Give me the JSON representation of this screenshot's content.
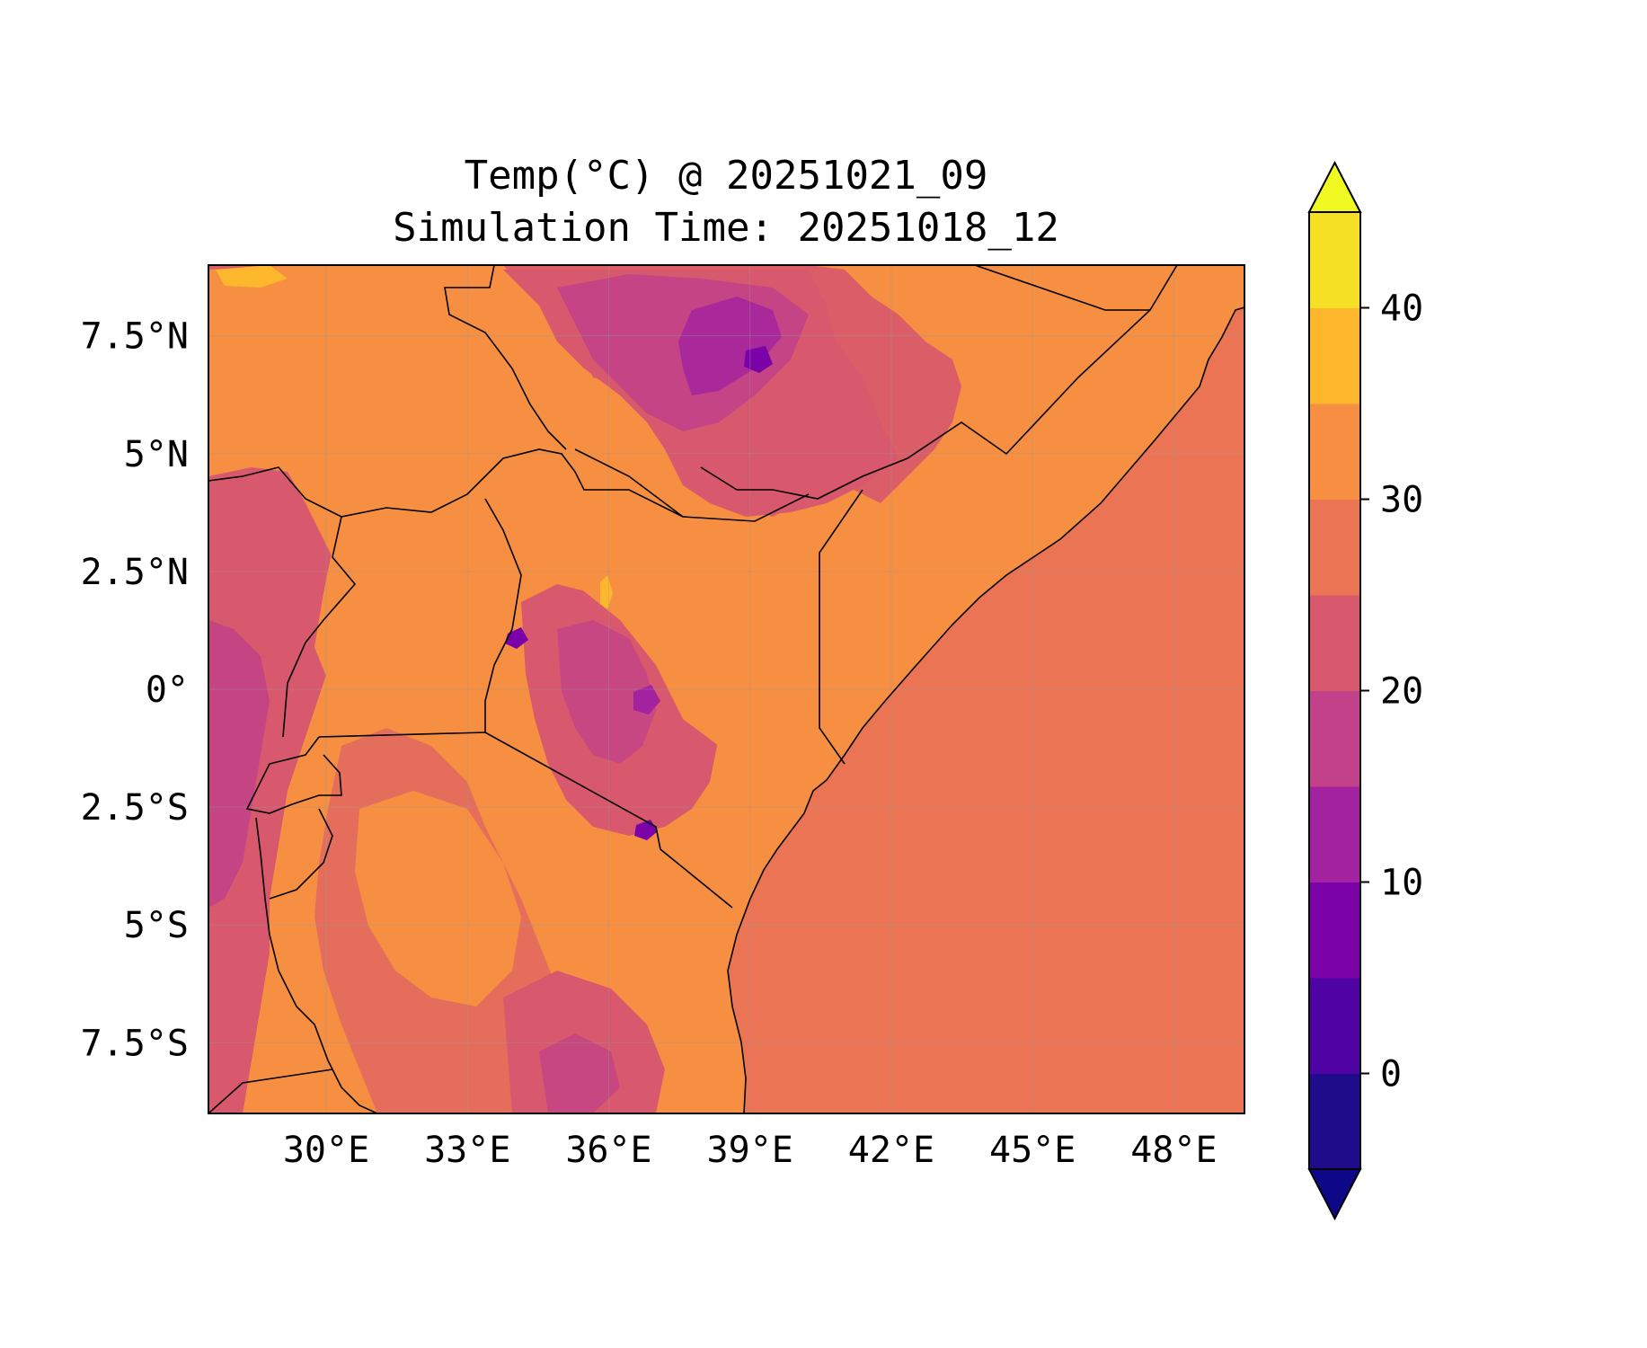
{
  "chart_data": {
    "type": "heatmap",
    "title": "Temp(°C) @ 20251021_09",
    "subtitle": "Simulation Time: 20251018_12",
    "xlabel": "",
    "ylabel": "",
    "xlim": [
      27.5,
      49.5
    ],
    "ylim": [
      -9.0,
      9.0
    ],
    "x_ticks": [
      30,
      33,
      36,
      39,
      42,
      45,
      48
    ],
    "x_tick_labels": [
      "30°E",
      "33°E",
      "36°E",
      "39°E",
      "42°E",
      "45°E",
      "48°E"
    ],
    "y_ticks": [
      7.5,
      5,
      2.5,
      0,
      -2.5,
      -5,
      -7.5
    ],
    "y_tick_labels": [
      "7.5°N",
      "5°N",
      "2.5°N",
      "0°",
      "2.5°S",
      "5°S",
      "7.5°S"
    ],
    "grid": true,
    "colorbar": {
      "levels": [
        -5,
        0,
        5,
        10,
        15,
        20,
        25,
        30,
        35,
        40,
        45
      ],
      "colors": [
        "#1f0c8a",
        "#4e03a2",
        "#7b02a8",
        "#a2229f",
        "#c1418a",
        "#d8586d",
        "#eb7455",
        "#f68f41",
        "#fdb72c",
        "#f5e025"
      ],
      "under_color": "#0d0887",
      "over_color": "#f0f921",
      "extend": "both",
      "tick_values": [
        0,
        10,
        20,
        30,
        40
      ],
      "tick_labels": [
        "0",
        "10",
        "20",
        "30",
        "40"
      ]
    },
    "colors": {
      "ocean": "#eb7455",
      "land_warm": "#f68f41",
      "highland": "#d8586d",
      "mountain": "#c1418a",
      "peak": "#a2229f",
      "summit": "#7b02a8",
      "hot": "#fdb72c"
    }
  }
}
